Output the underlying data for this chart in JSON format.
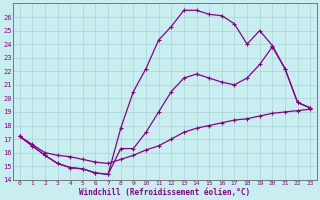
{
  "xlabel": "Windchill (Refroidissement éolien,°C)",
  "bg_color": "#c8eef0",
  "grid_color": "#b0d8da",
  "line_color": "#880088",
  "xlim": [
    -0.5,
    23.5
  ],
  "ylim": [
    14,
    27
  ],
  "xticks": [
    0,
    1,
    2,
    3,
    4,
    5,
    6,
    7,
    8,
    9,
    10,
    11,
    12,
    13,
    14,
    15,
    16,
    17,
    18,
    19,
    20,
    21,
    22,
    23
  ],
  "yticks": [
    14,
    15,
    16,
    17,
    18,
    19,
    20,
    21,
    22,
    23,
    24,
    25,
    26
  ],
  "line1_x": [
    0,
    1,
    2,
    3,
    4,
    5,
    6,
    7,
    8,
    9,
    10,
    11,
    12,
    13,
    14,
    15,
    16,
    17,
    18,
    19,
    20,
    21,
    22,
    23
  ],
  "line1_y": [
    17.2,
    16.6,
    16.0,
    15.8,
    15.7,
    15.5,
    15.3,
    15.2,
    15.5,
    15.8,
    16.2,
    16.5,
    17.0,
    17.5,
    17.8,
    18.0,
    18.2,
    18.4,
    18.5,
    18.7,
    18.9,
    19.0,
    19.1,
    19.2
  ],
  "line2_x": [
    0,
    1,
    2,
    3,
    4,
    5,
    6,
    7,
    8,
    9,
    10,
    11,
    12,
    13,
    14,
    15,
    16,
    17,
    18,
    19,
    20,
    21,
    22,
    23
  ],
  "line2_y": [
    17.2,
    16.5,
    15.8,
    15.2,
    14.9,
    14.8,
    14.5,
    14.4,
    17.8,
    20.5,
    22.2,
    24.3,
    25.3,
    26.5,
    26.5,
    26.2,
    26.1,
    25.5,
    24.0,
    25.0,
    23.9,
    22.2,
    19.7,
    19.3
  ],
  "line3_x": [
    0,
    1,
    2,
    3,
    4,
    5,
    6,
    7,
    8,
    9,
    10,
    11,
    12,
    13,
    14,
    15,
    16,
    17,
    18,
    19,
    20,
    21,
    22,
    23
  ],
  "line3_y": [
    17.2,
    16.5,
    15.8,
    15.2,
    14.9,
    14.8,
    14.5,
    14.4,
    16.3,
    16.3,
    17.5,
    19.0,
    20.5,
    21.5,
    21.8,
    21.5,
    21.2,
    21.0,
    21.5,
    22.5,
    23.8,
    22.2,
    19.7,
    19.3
  ]
}
